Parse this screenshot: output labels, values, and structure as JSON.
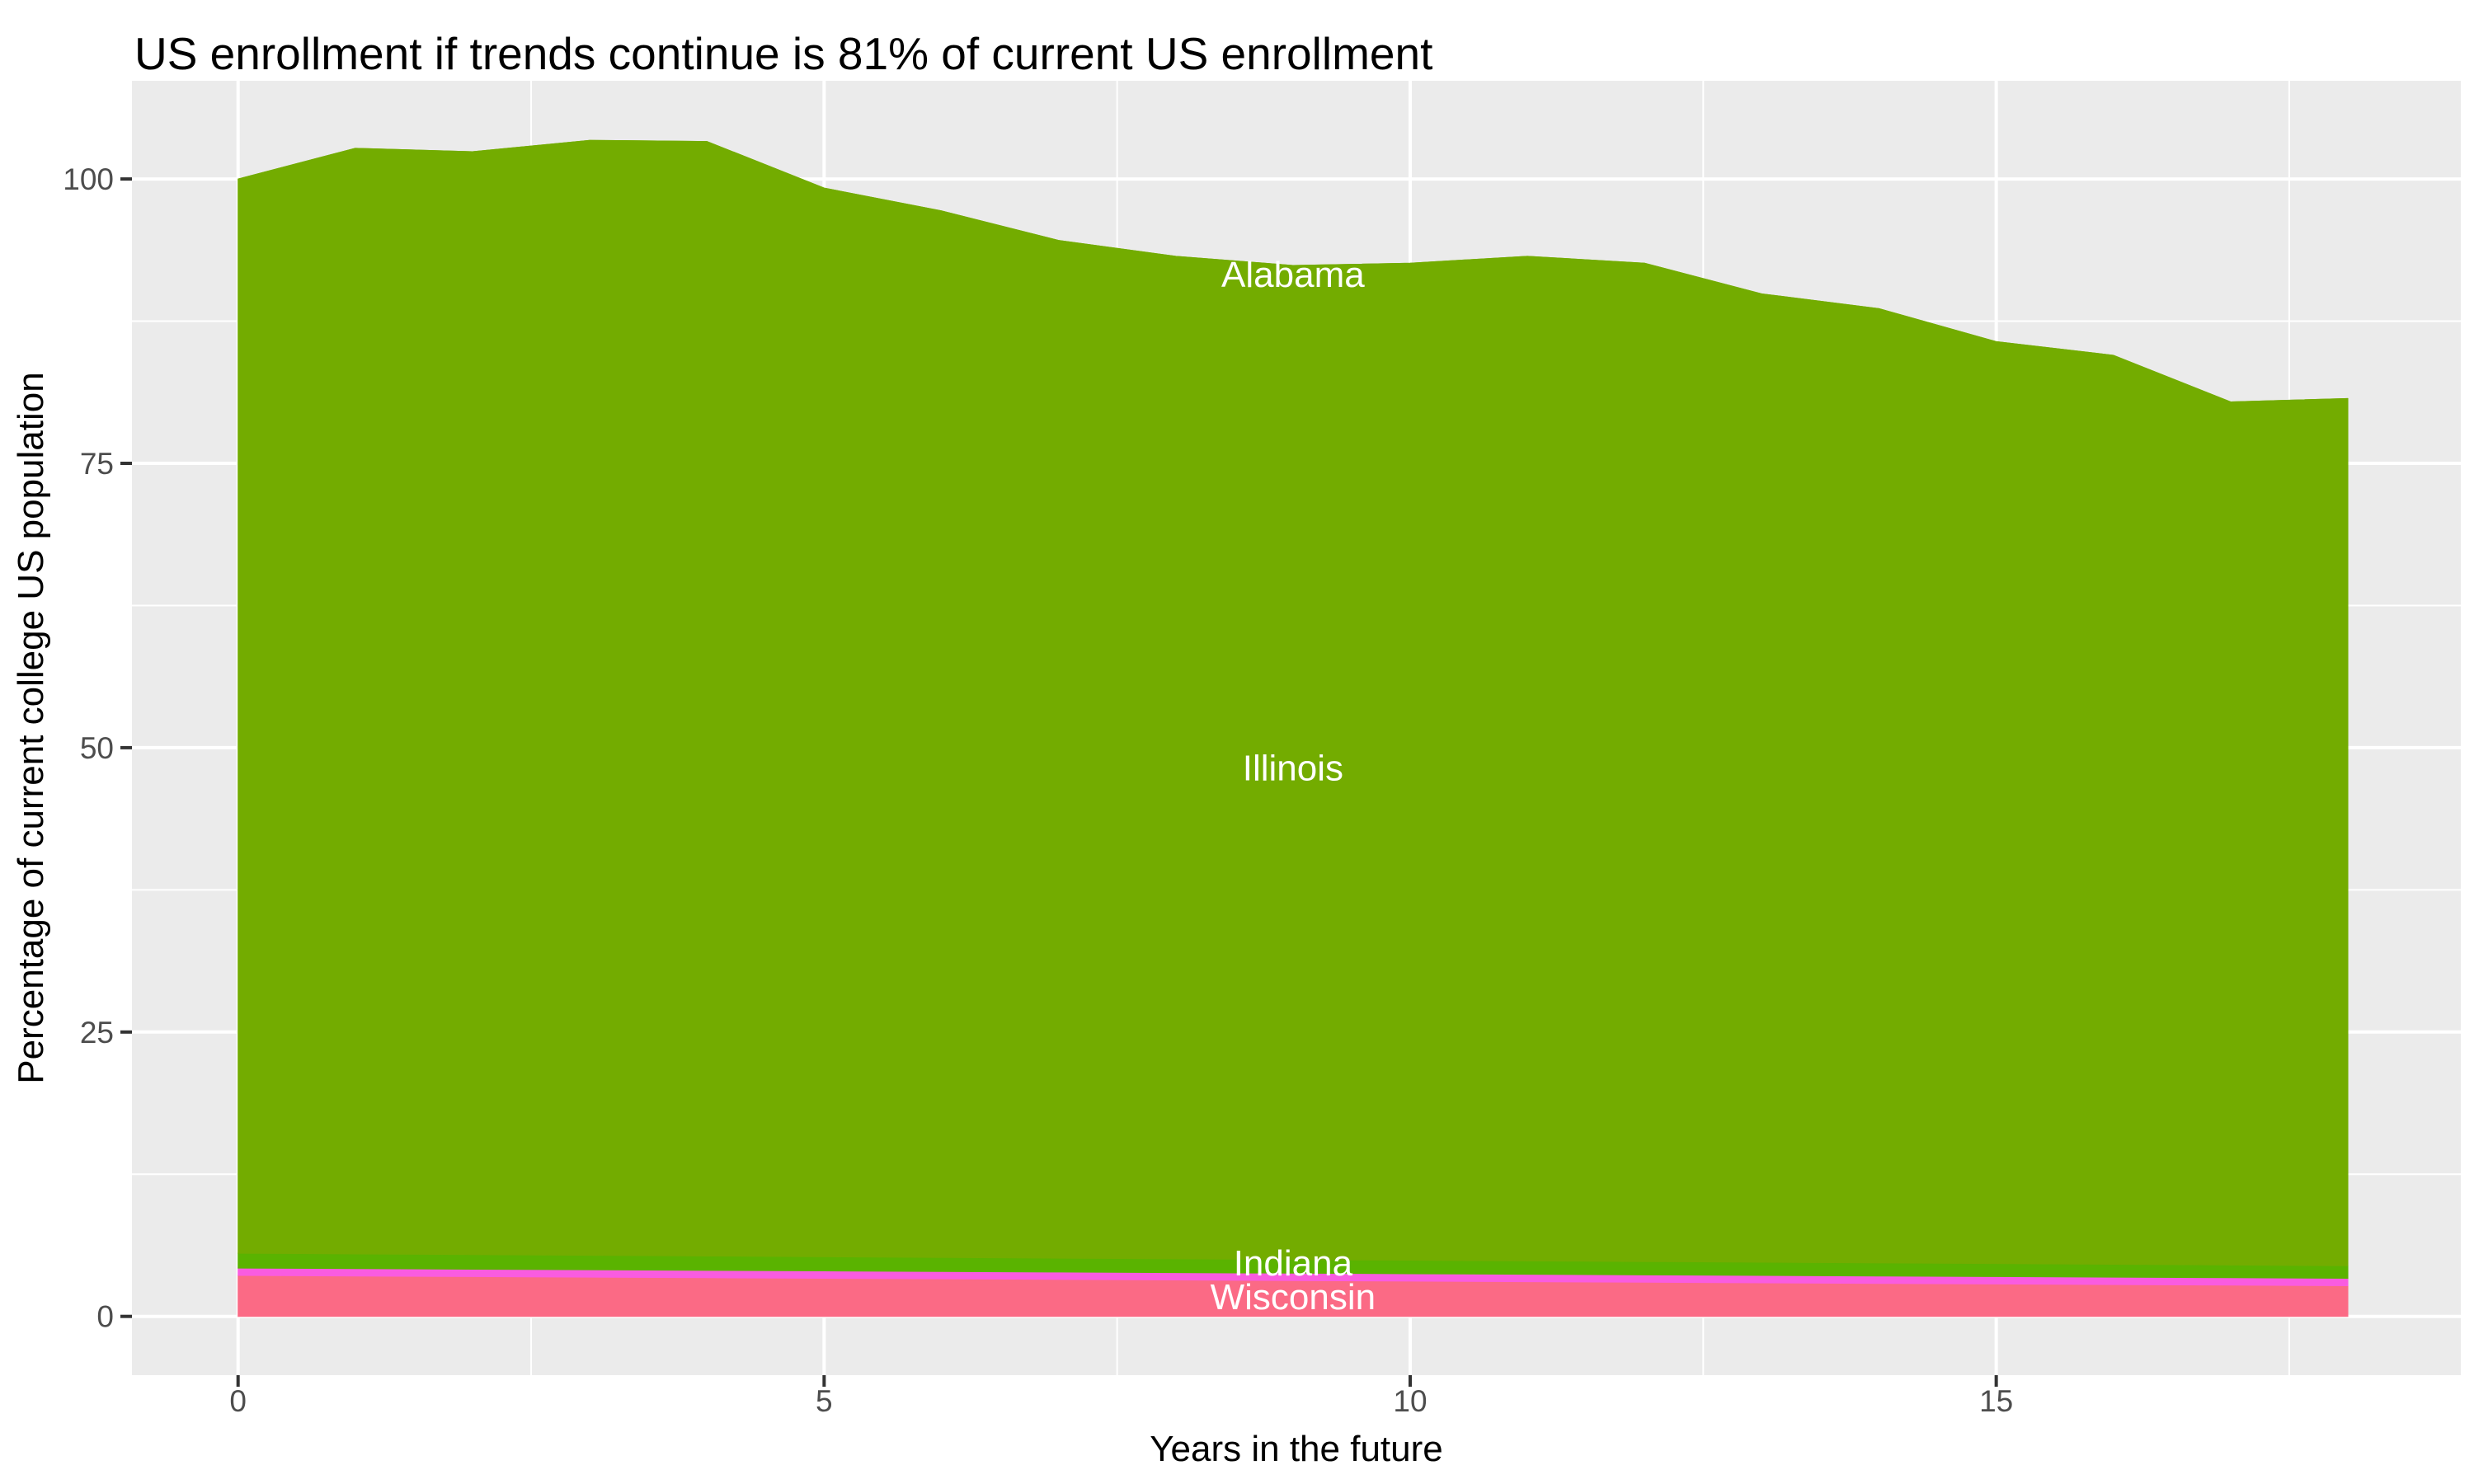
{
  "title": {
    "text": "US enrollment if trends continue is 81% of current US enrollment"
  },
  "axes": {
    "x": {
      "title": "Years in the future",
      "ticks": [
        0,
        5,
        10,
        15
      ],
      "minor_ticks": [
        2.5,
        7.5,
        12.5,
        17.5
      ],
      "range": [
        -0.9,
        18.95
      ]
    },
    "y": {
      "title": "Percentage of current college US population",
      "ticks": [
        0,
        25,
        50,
        75,
        100
      ],
      "minor_ticks": [
        12.5,
        37.5,
        62.5,
        87.5
      ],
      "range": [
        -5.2,
        108.6
      ]
    }
  },
  "colors": {
    "background": "#ffffff",
    "panel": "#ebebeb",
    "gridline": "#ffffff",
    "tick_mark": "#333333",
    "tick_text": "#4d4d4d",
    "illinois_green": "#73AC00",
    "indiana_green": "#5AB300",
    "magenta_band": "#F95CE0",
    "wisconsin_pink": "#FB6A85",
    "label_text": "#ffffff"
  },
  "chart_data": {
    "type": "area",
    "stacked": true,
    "title": "US enrollment if trends continue is 81% of current US enrollment",
    "xlabel": "Years in the future",
    "ylabel": "Percentage of current college US population",
    "xlim": [
      -0.9,
      18.95
    ],
    "ylim": [
      -5.2,
      108.6
    ],
    "grid": true,
    "legend": false,
    "x": [
      0,
      1,
      2,
      3,
      4,
      5,
      6,
      7,
      8,
      9,
      10,
      11,
      12,
      13,
      14,
      15,
      16,
      17,
      18
    ],
    "series": [
      {
        "name": "Wisconsin",
        "color": "#FB6A85",
        "values": [
          3.6,
          3.55,
          3.5,
          3.45,
          3.4,
          3.35,
          3.3,
          3.25,
          3.2,
          3.15,
          3.1,
          3.05,
          3.0,
          2.95,
          2.9,
          2.85,
          2.8,
          2.75,
          2.7
        ]
      },
      {
        "name": "",
        "color": "#F95CE0",
        "values": [
          0.65,
          0.65,
          0.65,
          0.65,
          0.65,
          0.65,
          0.65,
          0.65,
          0.65,
          0.65,
          0.65,
          0.65,
          0.65,
          0.65,
          0.65,
          0.65,
          0.65,
          0.65,
          0.65
        ]
      },
      {
        "name": "Indiana",
        "color": "#5AB300",
        "values": [
          1.3,
          1.29,
          1.28,
          1.27,
          1.26,
          1.24,
          1.23,
          1.22,
          1.21,
          1.2,
          1.19,
          1.18,
          1.17,
          1.16,
          1.15,
          1.14,
          1.13,
          1.12,
          1.1
        ]
      },
      {
        "name": "Illinois",
        "color": "#73AC00",
        "values": [
          94.45,
          97.21,
          96.97,
          98.03,
          97.99,
          93.96,
          92.02,
          89.48,
          88.14,
          87.4,
          87.66,
          88.32,
          87.78,
          85.14,
          83.9,
          81.06,
          79.92,
          75.88,
          76.25
        ]
      },
      {
        "name": "Alabama",
        "color": "#73AC00",
        "values": [
          0,
          0,
          0,
          0,
          0,
          0,
          0,
          0,
          0,
          0,
          0,
          0,
          0,
          0,
          0,
          0,
          0,
          0,
          0
        ]
      }
    ],
    "totals": [
      100.0,
      102.7,
      102.4,
      103.4,
      103.3,
      99.2,
      97.2,
      94.6,
      93.2,
      92.4,
      92.6,
      93.2,
      92.6,
      89.9,
      88.6,
      85.7,
      84.5,
      80.4,
      80.7
    ],
    "annotations": [
      {
        "label": "Alabama",
        "x": 9,
        "y": 91.6
      },
      {
        "label": "Illinois",
        "x": 9,
        "y": 48.2
      },
      {
        "label": "Indiana",
        "x": 9,
        "y": 4.7
      },
      {
        "label": "Wisconsin",
        "x": 9,
        "y": 1.7
      }
    ]
  }
}
